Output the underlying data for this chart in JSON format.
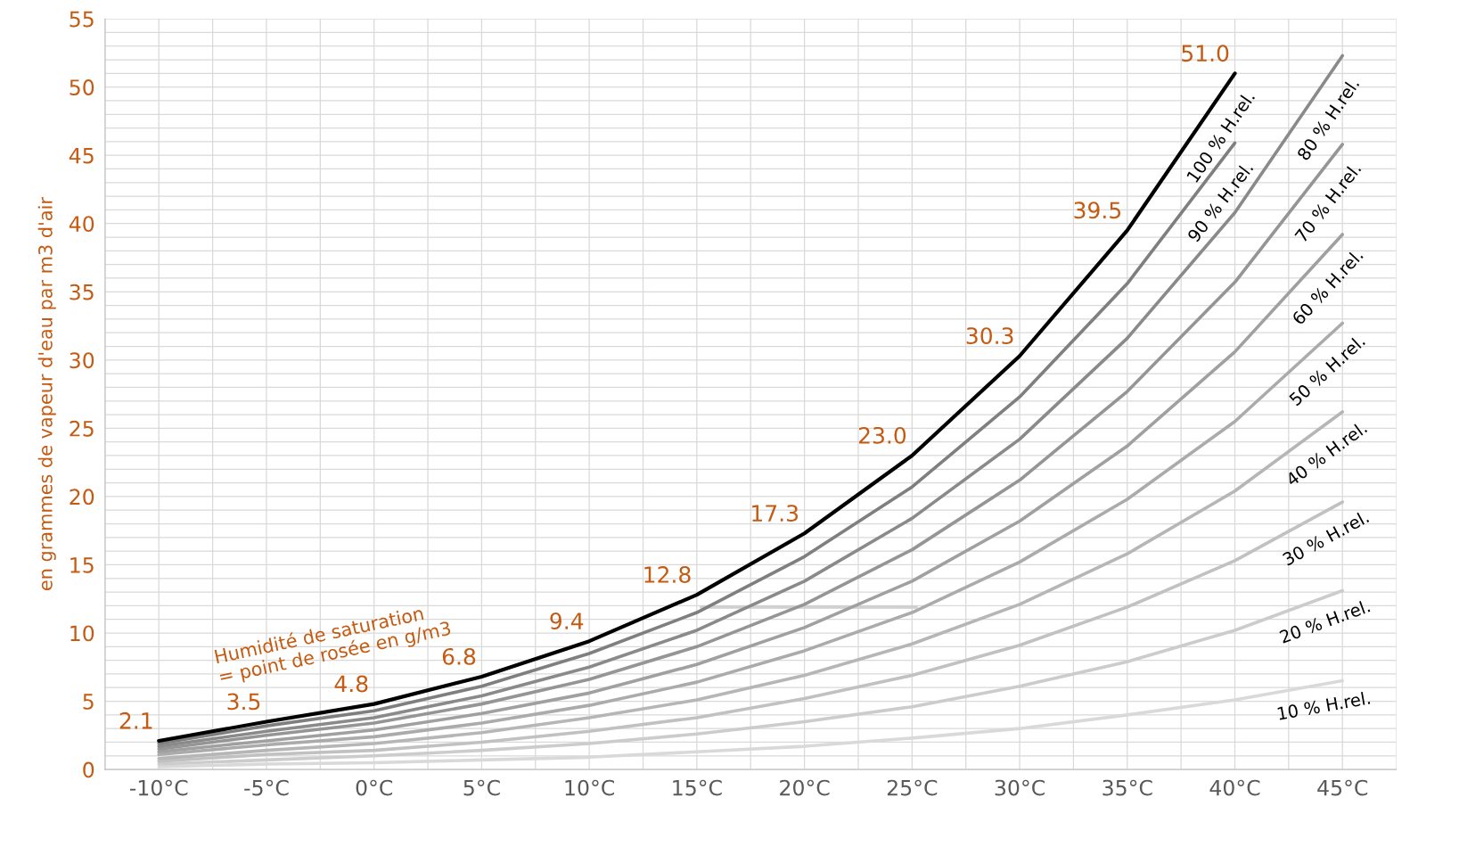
{
  "chart_data": {
    "type": "line",
    "ylabel": "en grammes de vapeur d'eau par m3 d'air",
    "x": [
      -10,
      -5,
      0,
      5,
      10,
      15,
      20,
      25,
      30,
      35,
      40,
      45
    ],
    "xlim": [
      -12.5,
      47.5
    ],
    "xticks": [
      {
        "value": -12.5,
        "label": null
      },
      {
        "value": -10,
        "label": "-10°C"
      },
      {
        "value": -7.5,
        "label": null
      },
      {
        "value": -5,
        "label": "-5°C"
      },
      {
        "value": -2.5,
        "label": null
      },
      {
        "value": 0,
        "label": "0°C"
      },
      {
        "value": 2.5,
        "label": null
      },
      {
        "value": 5,
        "label": "5°C"
      },
      {
        "value": 7.5,
        "label": null
      },
      {
        "value": 10,
        "label": "10°C"
      },
      {
        "value": 12.5,
        "label": null
      },
      {
        "value": 15,
        "label": "15°C"
      },
      {
        "value": 17.5,
        "label": null
      },
      {
        "value": 20,
        "label": "20°C"
      },
      {
        "value": 22.5,
        "label": null
      },
      {
        "value": 25,
        "label": "25°C"
      },
      {
        "value": 27.5,
        "label": null
      },
      {
        "value": 30,
        "label": "30°C"
      },
      {
        "value": 32.5,
        "label": null
      },
      {
        "value": 35,
        "label": "35°C"
      },
      {
        "value": 37.5,
        "label": null
      },
      {
        "value": 40,
        "label": "40°C"
      },
      {
        "value": 42.5,
        "label": null
      },
      {
        "value": 45,
        "label": "45°C"
      },
      {
        "value": 47.5,
        "label": null
      }
    ],
    "ylim": [
      0,
      55
    ],
    "yticks": [
      0,
      {
        "value": 1,
        "label": null
      },
      {
        "value": 2,
        "label": null
      },
      {
        "value": 3,
        "label": null
      },
      {
        "value": 4,
        "label": null
      },
      5,
      {
        "value": 6,
        "label": null
      },
      {
        "value": 7,
        "label": null
      },
      {
        "value": 8,
        "label": null
      },
      {
        "value": 9,
        "label": null
      },
      10,
      {
        "value": 11,
        "label": null
      },
      {
        "value": 12,
        "label": null
      },
      {
        "value": 13,
        "label": null
      },
      {
        "value": 14,
        "label": null
      },
      15,
      {
        "value": 16,
        "label": null
      },
      {
        "value": 17,
        "label": null
      },
      {
        "value": 18,
        "label": null
      },
      {
        "value": 19,
        "label": null
      },
      20,
      {
        "value": 21,
        "label": null
      },
      {
        "value": 22,
        "label": null
      },
      {
        "value": 23,
        "label": null
      },
      {
        "value": 24,
        "label": null
      },
      25,
      {
        "value": 26,
        "label": null
      },
      {
        "value": 27,
        "label": null
      },
      {
        "value": 28,
        "label": null
      },
      {
        "value": 29,
        "label": null
      },
      30,
      {
        "value": 31,
        "label": null
      },
      {
        "value": 32,
        "label": null
      },
      {
        "value": 33,
        "label": null
      },
      {
        "value": 34,
        "label": null
      },
      35,
      {
        "value": 36,
        "label": null
      },
      {
        "value": 37,
        "label": null
      },
      {
        "value": 38,
        "label": null
      },
      {
        "value": 39,
        "label": null
      },
      40,
      {
        "value": 41,
        "label": null
      },
      {
        "value": 42,
        "label": null
      },
      {
        "value": 43,
        "label": null
      },
      {
        "value": 44,
        "label": null
      },
      45,
      {
        "value": 46,
        "label": null
      },
      {
        "value": 47,
        "label": null
      },
      {
        "value": 48,
        "label": null
      },
      {
        "value": 49,
        "label": null
      },
      50,
      {
        "value": 51,
        "label": null
      },
      {
        "value": 52,
        "label": null
      },
      {
        "value": 53,
        "label": null
      },
      {
        "value": 54,
        "label": null
      },
      55
    ],
    "grid": true,
    "line_style": "solid",
    "marker": "none",
    "annotations": [
      "Humidité de saturation\n= point de rosée en g/m3"
    ],
    "series": [
      {
        "name": "100 % H.rel.",
        "color": "#000000",
        "values": [
          2.1,
          3.5,
          4.8,
          6.8,
          9.4,
          12.8,
          17.3,
          23.0,
          30.3,
          39.5,
          51.0,
          null
        ],
        "value_labels": [
          "2.1",
          "3.5",
          "4.8",
          "6.8",
          "9.4",
          "12.8",
          "17.3",
          "23.0",
          "30.3",
          "39.5",
          "51.0",
          null
        ]
      },
      {
        "name": "90 % H.rel.",
        "color": "#7f7f7f",
        "values": [
          1.9,
          3.2,
          4.3,
          6.1,
          8.5,
          11.5,
          15.6,
          20.7,
          27.3,
          35.6,
          45.9,
          null
        ]
      },
      {
        "name": "80 % H.rel.",
        "color": "#8a8a8a",
        "values": [
          1.7,
          2.8,
          3.8,
          5.4,
          7.5,
          10.2,
          13.8,
          18.4,
          24.2,
          31.6,
          40.8,
          52.3
        ]
      },
      {
        "name": "70 % H.rel.",
        "color": "#959595",
        "values": [
          1.5,
          2.5,
          3.4,
          4.8,
          6.6,
          9.0,
          12.1,
          16.1,
          21.2,
          27.7,
          35.7,
          45.8
        ]
      },
      {
        "name": "60 % H.rel.",
        "color": "#a0a0a0",
        "values": [
          1.3,
          2.1,
          2.9,
          4.1,
          5.6,
          7.7,
          10.4,
          13.8,
          18.2,
          23.7,
          30.6,
          39.2
        ]
      },
      {
        "name": "50 % H.rel.",
        "color": "#ababab",
        "values": [
          1.1,
          1.8,
          2.4,
          3.4,
          4.7,
          6.4,
          8.7,
          11.5,
          15.2,
          19.8,
          25.5,
          32.7
        ]
      },
      {
        "name": "40 % H.rel.",
        "color": "#b6b6b6",
        "values": [
          0.8,
          1.4,
          1.9,
          2.7,
          3.8,
          5.1,
          6.9,
          9.2,
          12.1,
          15.8,
          20.4,
          26.2
        ]
      },
      {
        "name": "30 % H.rel.",
        "color": "#c1c1c1",
        "values": [
          0.6,
          1.1,
          1.4,
          2.0,
          2.8,
          3.8,
          5.2,
          6.9,
          9.1,
          11.9,
          15.3,
          19.6
        ]
      },
      {
        "name": "20 % H.rel.",
        "color": "#cccccc",
        "values": [
          0.4,
          0.7,
          1.0,
          1.4,
          1.9,
          2.6,
          3.5,
          4.6,
          6.1,
          7.9,
          10.2,
          13.1
        ]
      },
      {
        "name": "10 % H.rel.",
        "color": "#d9d9d9",
        "values": [
          0.2,
          0.4,
          0.5,
          0.7,
          0.9,
          1.3,
          1.7,
          2.3,
          3.0,
          4.0,
          5.1,
          6.5
        ]
      },
      {
        "color": "#d0d0d0",
        "x": [
          15.2,
          25.2
        ],
        "values": [
          11.9,
          11.9
        ]
      }
    ]
  }
}
